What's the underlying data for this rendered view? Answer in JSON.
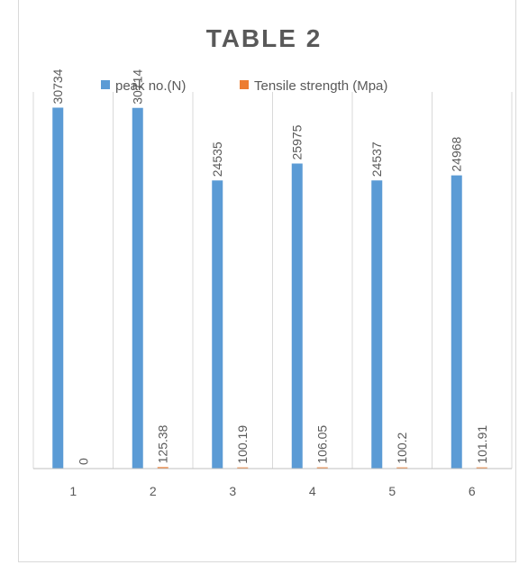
{
  "chart_data": {
    "type": "bar",
    "title": "TABLE 2",
    "xlabel": "",
    "ylabel": "",
    "categories": [
      "1",
      "2",
      "3",
      "4",
      "5",
      "6"
    ],
    "series": [
      {
        "name": "peak no.(N)",
        "color": "#5B9BD5",
        "values": [
          30734,
          30714,
          24535,
          25975,
          24537,
          24968
        ],
        "labels": [
          "30734",
          "30714",
          "24535",
          "25975",
          "24537",
          "24968"
        ]
      },
      {
        "name": "Tensile strength (Mpa)",
        "color": "#ED7D31",
        "values": [
          0,
          125.38,
          100.19,
          106.05,
          100.2,
          101.91
        ],
        "labels": [
          "0",
          "125.38",
          "100.19",
          "106.05",
          "100.2",
          "101.91"
        ]
      }
    ],
    "ylim": [
      0,
      31000
    ],
    "grid": "vertical",
    "legend_position": "top"
  }
}
